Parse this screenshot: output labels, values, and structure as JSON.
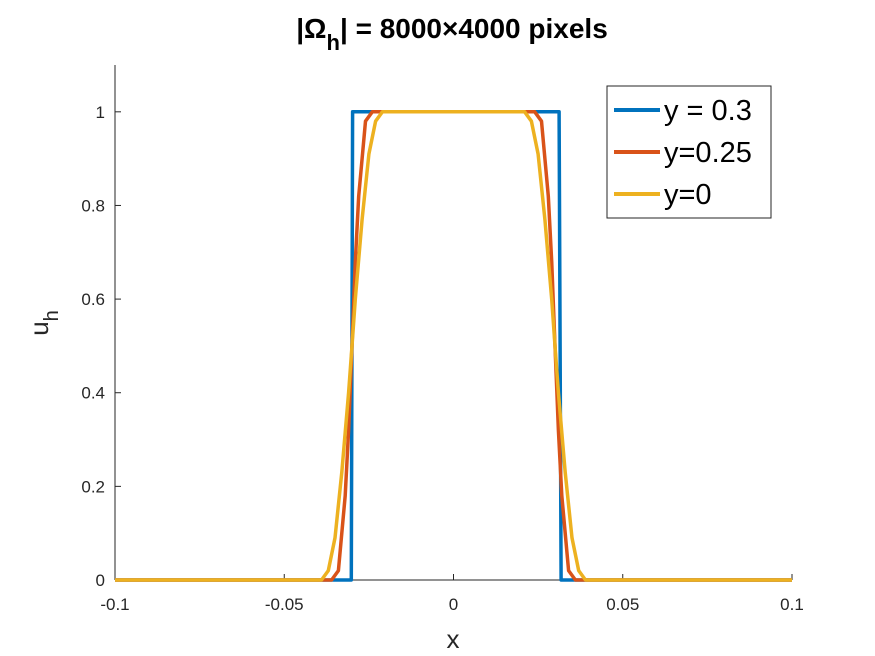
{
  "chart_data": {
    "type": "line",
    "title": {
      "prefix": "|Ω",
      "subscript": "h",
      "suffix": "| = 8000×4000 pixels"
    },
    "xlabel": "x",
    "ylabel": {
      "base": "u",
      "subscript": "h"
    },
    "xlim": [
      -0.1,
      0.1
    ],
    "ylim": [
      0,
      1.1
    ],
    "xticks": [
      -0.1,
      -0.05,
      0,
      0.05,
      0.1
    ],
    "xtick_labels": [
      "-0.1",
      "-0.05",
      "0",
      "0.05",
      "0.1"
    ],
    "yticks": [
      0,
      0.2,
      0.4,
      0.6,
      0.8,
      1
    ],
    "ytick_labels": [
      "0",
      "0.2",
      "0.4",
      "0.6",
      "0.8",
      "1"
    ],
    "grid": false,
    "legend_position": "top-right",
    "series": [
      {
        "name": "y = 0.3",
        "color": "#0072BD",
        "x": [
          -0.1,
          -0.0312,
          -0.0302,
          -0.0298,
          -0.0288,
          0.0302,
          0.0312,
          0.0318,
          0.1
        ],
        "y": [
          0,
          0,
          0,
          1,
          1,
          1,
          1,
          0,
          0
        ]
      },
      {
        "name": "y=0.25",
        "color": "#D95319",
        "x": [
          -0.1,
          -0.036,
          -0.034,
          -0.032,
          -0.031,
          -0.03,
          -0.029,
          -0.028,
          -0.026,
          -0.024,
          0.024,
          0.026,
          0.028,
          0.029,
          0.03,
          0.031,
          0.032,
          0.034,
          0.036,
          0.1
        ],
        "y": [
          0,
          0,
          0.02,
          0.18,
          0.32,
          0.5,
          0.68,
          0.82,
          0.98,
          1,
          1,
          0.98,
          0.82,
          0.68,
          0.5,
          0.32,
          0.18,
          0.02,
          0,
          0
        ]
      },
      {
        "name": "y=0",
        "color": "#EDB120",
        "x": [
          -0.1,
          -0.039,
          -0.037,
          -0.035,
          -0.033,
          -0.031,
          -0.03,
          -0.029,
          -0.027,
          -0.025,
          -0.023,
          -0.021,
          0.021,
          0.023,
          0.025,
          0.027,
          0.029,
          0.03,
          0.031,
          0.033,
          0.035,
          0.037,
          0.039,
          0.1
        ],
        "y": [
          0,
          0,
          0.02,
          0.09,
          0.23,
          0.4,
          0.5,
          0.6,
          0.77,
          0.91,
          0.98,
          1,
          1,
          0.98,
          0.91,
          0.77,
          0.6,
          0.5,
          0.4,
          0.23,
          0.09,
          0.02,
          0,
          0
        ]
      }
    ]
  }
}
